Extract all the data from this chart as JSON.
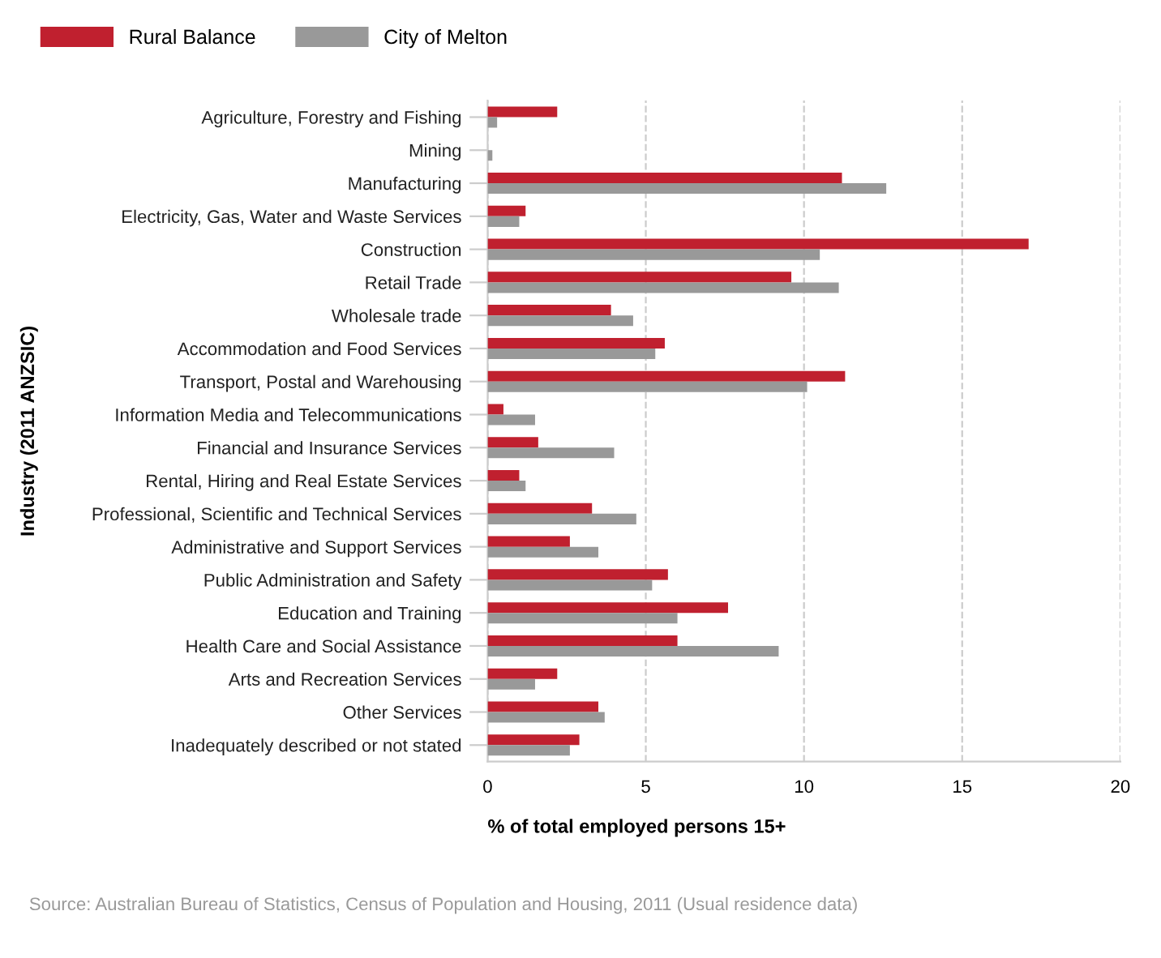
{
  "chart_data": {
    "type": "bar",
    "orientation": "horizontal",
    "categories": [
      "Agriculture, Forestry and Fishing",
      "Mining",
      "Manufacturing",
      "Electricity, Gas, Water and Waste Services",
      "Construction",
      "Retail Trade",
      "Wholesale trade",
      "Accommodation and Food Services",
      "Transport, Postal and Warehousing",
      "Information Media and Telecommunications",
      "Financial and Insurance Services",
      "Rental, Hiring and Real Estate Services",
      "Professional, Scientific and Technical Services",
      "Administrative and Support Services",
      "Public Administration and Safety",
      "Education and Training",
      "Health Care and Social Assistance",
      "Arts and Recreation Services",
      "Other Services",
      "Inadequately described or not stated"
    ],
    "series": [
      {
        "name": "Rural Balance",
        "color": "#c0202f",
        "values": [
          2.2,
          0,
          11.2,
          1.2,
          17.1,
          9.6,
          3.9,
          5.6,
          11.3,
          0.5,
          1.6,
          1.0,
          3.3,
          2.6,
          5.7,
          7.6,
          6.0,
          2.2,
          3.5,
          2.9
        ]
      },
      {
        "name": "City of Melton",
        "color": "#999999",
        "values": [
          0.3,
          0.15,
          12.6,
          1.0,
          10.5,
          11.1,
          4.6,
          5.3,
          10.1,
          1.5,
          4.0,
          1.2,
          4.7,
          3.5,
          5.2,
          6.0,
          9.2,
          1.5,
          3.7,
          2.6
        ]
      }
    ],
    "xlim": [
      0,
      20
    ],
    "xticks": [
      0,
      5,
      10,
      15,
      20
    ],
    "xlabel": "% of total employed persons 15+",
    "ylabel": "Industry (2011 ANZSIC)",
    "grid": "x",
    "legend": "top left",
    "annotations": [
      "Source: Australian Bureau of Statistics, Census of Population and Housing, 2011 (Usual residence data)"
    ]
  }
}
